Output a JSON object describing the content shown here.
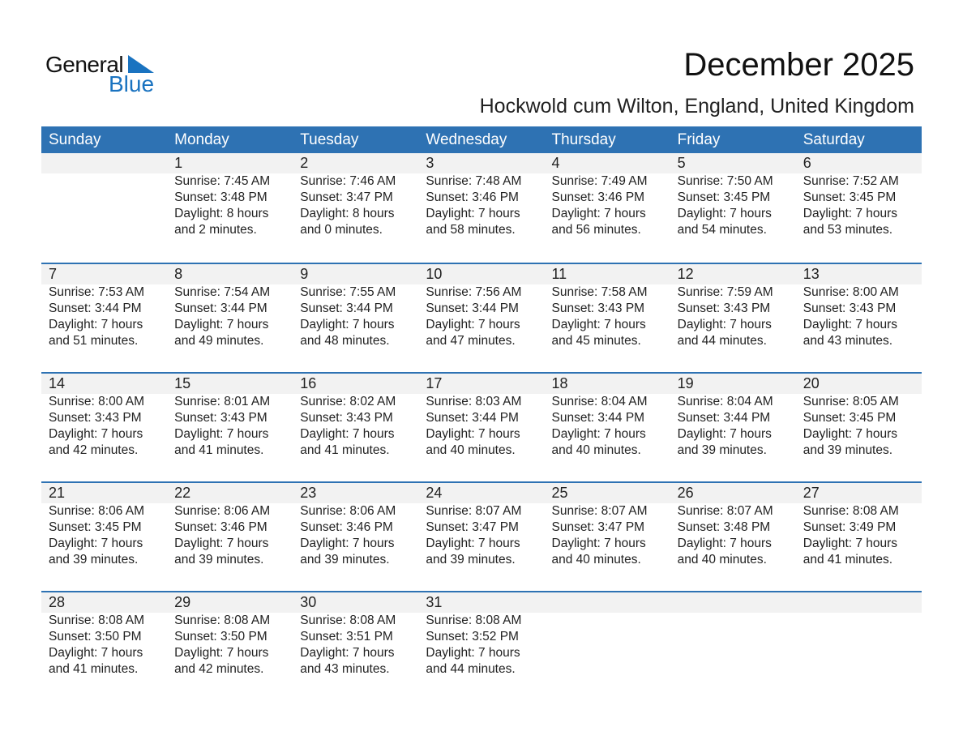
{
  "logo": {
    "text1": "General",
    "text2": "Blue",
    "color": "#1a73c0"
  },
  "title": "December 2025",
  "location": "Hockwold cum Wilton, England, United Kingdom",
  "colors": {
    "header": "#2e72b3",
    "band": "#f2f2f2"
  },
  "weekdays": [
    "Sunday",
    "Monday",
    "Tuesday",
    "Wednesday",
    "Thursday",
    "Friday",
    "Saturday"
  ],
  "weeks": [
    [
      null,
      {
        "day": "1",
        "sunrise": "Sunrise: 7:45 AM",
        "sunset": "Sunset: 3:48 PM",
        "daylight1": "Daylight: 8 hours",
        "daylight2": "and 2 minutes."
      },
      {
        "day": "2",
        "sunrise": "Sunrise: 7:46 AM",
        "sunset": "Sunset: 3:47 PM",
        "daylight1": "Daylight: 8 hours",
        "daylight2": "and 0 minutes."
      },
      {
        "day": "3",
        "sunrise": "Sunrise: 7:48 AM",
        "sunset": "Sunset: 3:46 PM",
        "daylight1": "Daylight: 7 hours",
        "daylight2": "and 58 minutes."
      },
      {
        "day": "4",
        "sunrise": "Sunrise: 7:49 AM",
        "sunset": "Sunset: 3:46 PM",
        "daylight1": "Daylight: 7 hours",
        "daylight2": "and 56 minutes."
      },
      {
        "day": "5",
        "sunrise": "Sunrise: 7:50 AM",
        "sunset": "Sunset: 3:45 PM",
        "daylight1": "Daylight: 7 hours",
        "daylight2": "and 54 minutes."
      },
      {
        "day": "6",
        "sunrise": "Sunrise: 7:52 AM",
        "sunset": "Sunset: 3:45 PM",
        "daylight1": "Daylight: 7 hours",
        "daylight2": "and 53 minutes."
      }
    ],
    [
      {
        "day": "7",
        "sunrise": "Sunrise: 7:53 AM",
        "sunset": "Sunset: 3:44 PM",
        "daylight1": "Daylight: 7 hours",
        "daylight2": "and 51 minutes."
      },
      {
        "day": "8",
        "sunrise": "Sunrise: 7:54 AM",
        "sunset": "Sunset: 3:44 PM",
        "daylight1": "Daylight: 7 hours",
        "daylight2": "and 49 minutes."
      },
      {
        "day": "9",
        "sunrise": "Sunrise: 7:55 AM",
        "sunset": "Sunset: 3:44 PM",
        "daylight1": "Daylight: 7 hours",
        "daylight2": "and 48 minutes."
      },
      {
        "day": "10",
        "sunrise": "Sunrise: 7:56 AM",
        "sunset": "Sunset: 3:44 PM",
        "daylight1": "Daylight: 7 hours",
        "daylight2": "and 47 minutes."
      },
      {
        "day": "11",
        "sunrise": "Sunrise: 7:58 AM",
        "sunset": "Sunset: 3:43 PM",
        "daylight1": "Daylight: 7 hours",
        "daylight2": "and 45 minutes."
      },
      {
        "day": "12",
        "sunrise": "Sunrise: 7:59 AM",
        "sunset": "Sunset: 3:43 PM",
        "daylight1": "Daylight: 7 hours",
        "daylight2": "and 44 minutes."
      },
      {
        "day": "13",
        "sunrise": "Sunrise: 8:00 AM",
        "sunset": "Sunset: 3:43 PM",
        "daylight1": "Daylight: 7 hours",
        "daylight2": "and 43 minutes."
      }
    ],
    [
      {
        "day": "14",
        "sunrise": "Sunrise: 8:00 AM",
        "sunset": "Sunset: 3:43 PM",
        "daylight1": "Daylight: 7 hours",
        "daylight2": "and 42 minutes."
      },
      {
        "day": "15",
        "sunrise": "Sunrise: 8:01 AM",
        "sunset": "Sunset: 3:43 PM",
        "daylight1": "Daylight: 7 hours",
        "daylight2": "and 41 minutes."
      },
      {
        "day": "16",
        "sunrise": "Sunrise: 8:02 AM",
        "sunset": "Sunset: 3:43 PM",
        "daylight1": "Daylight: 7 hours",
        "daylight2": "and 41 minutes."
      },
      {
        "day": "17",
        "sunrise": "Sunrise: 8:03 AM",
        "sunset": "Sunset: 3:44 PM",
        "daylight1": "Daylight: 7 hours",
        "daylight2": "and 40 minutes."
      },
      {
        "day": "18",
        "sunrise": "Sunrise: 8:04 AM",
        "sunset": "Sunset: 3:44 PM",
        "daylight1": "Daylight: 7 hours",
        "daylight2": "and 40 minutes."
      },
      {
        "day": "19",
        "sunrise": "Sunrise: 8:04 AM",
        "sunset": "Sunset: 3:44 PM",
        "daylight1": "Daylight: 7 hours",
        "daylight2": "and 39 minutes."
      },
      {
        "day": "20",
        "sunrise": "Sunrise: 8:05 AM",
        "sunset": "Sunset: 3:45 PM",
        "daylight1": "Daylight: 7 hours",
        "daylight2": "and 39 minutes."
      }
    ],
    [
      {
        "day": "21",
        "sunrise": "Sunrise: 8:06 AM",
        "sunset": "Sunset: 3:45 PM",
        "daylight1": "Daylight: 7 hours",
        "daylight2": "and 39 minutes."
      },
      {
        "day": "22",
        "sunrise": "Sunrise: 8:06 AM",
        "sunset": "Sunset: 3:46 PM",
        "daylight1": "Daylight: 7 hours",
        "daylight2": "and 39 minutes."
      },
      {
        "day": "23",
        "sunrise": "Sunrise: 8:06 AM",
        "sunset": "Sunset: 3:46 PM",
        "daylight1": "Daylight: 7 hours",
        "daylight2": "and 39 minutes."
      },
      {
        "day": "24",
        "sunrise": "Sunrise: 8:07 AM",
        "sunset": "Sunset: 3:47 PM",
        "daylight1": "Daylight: 7 hours",
        "daylight2": "and 39 minutes."
      },
      {
        "day": "25",
        "sunrise": "Sunrise: 8:07 AM",
        "sunset": "Sunset: 3:47 PM",
        "daylight1": "Daylight: 7 hours",
        "daylight2": "and 40 minutes."
      },
      {
        "day": "26",
        "sunrise": "Sunrise: 8:07 AM",
        "sunset": "Sunset: 3:48 PM",
        "daylight1": "Daylight: 7 hours",
        "daylight2": "and 40 minutes."
      },
      {
        "day": "27",
        "sunrise": "Sunrise: 8:08 AM",
        "sunset": "Sunset: 3:49 PM",
        "daylight1": "Daylight: 7 hours",
        "daylight2": "and 41 minutes."
      }
    ],
    [
      {
        "day": "28",
        "sunrise": "Sunrise: 8:08 AM",
        "sunset": "Sunset: 3:50 PM",
        "daylight1": "Daylight: 7 hours",
        "daylight2": "and 41 minutes."
      },
      {
        "day": "29",
        "sunrise": "Sunrise: 8:08 AM",
        "sunset": "Sunset: 3:50 PM",
        "daylight1": "Daylight: 7 hours",
        "daylight2": "and 42 minutes."
      },
      {
        "day": "30",
        "sunrise": "Sunrise: 8:08 AM",
        "sunset": "Sunset: 3:51 PM",
        "daylight1": "Daylight: 7 hours",
        "daylight2": "and 43 minutes."
      },
      {
        "day": "31",
        "sunrise": "Sunrise: 8:08 AM",
        "sunset": "Sunset: 3:52 PM",
        "daylight1": "Daylight: 7 hours",
        "daylight2": "and 44 minutes."
      },
      null,
      null,
      null
    ]
  ]
}
